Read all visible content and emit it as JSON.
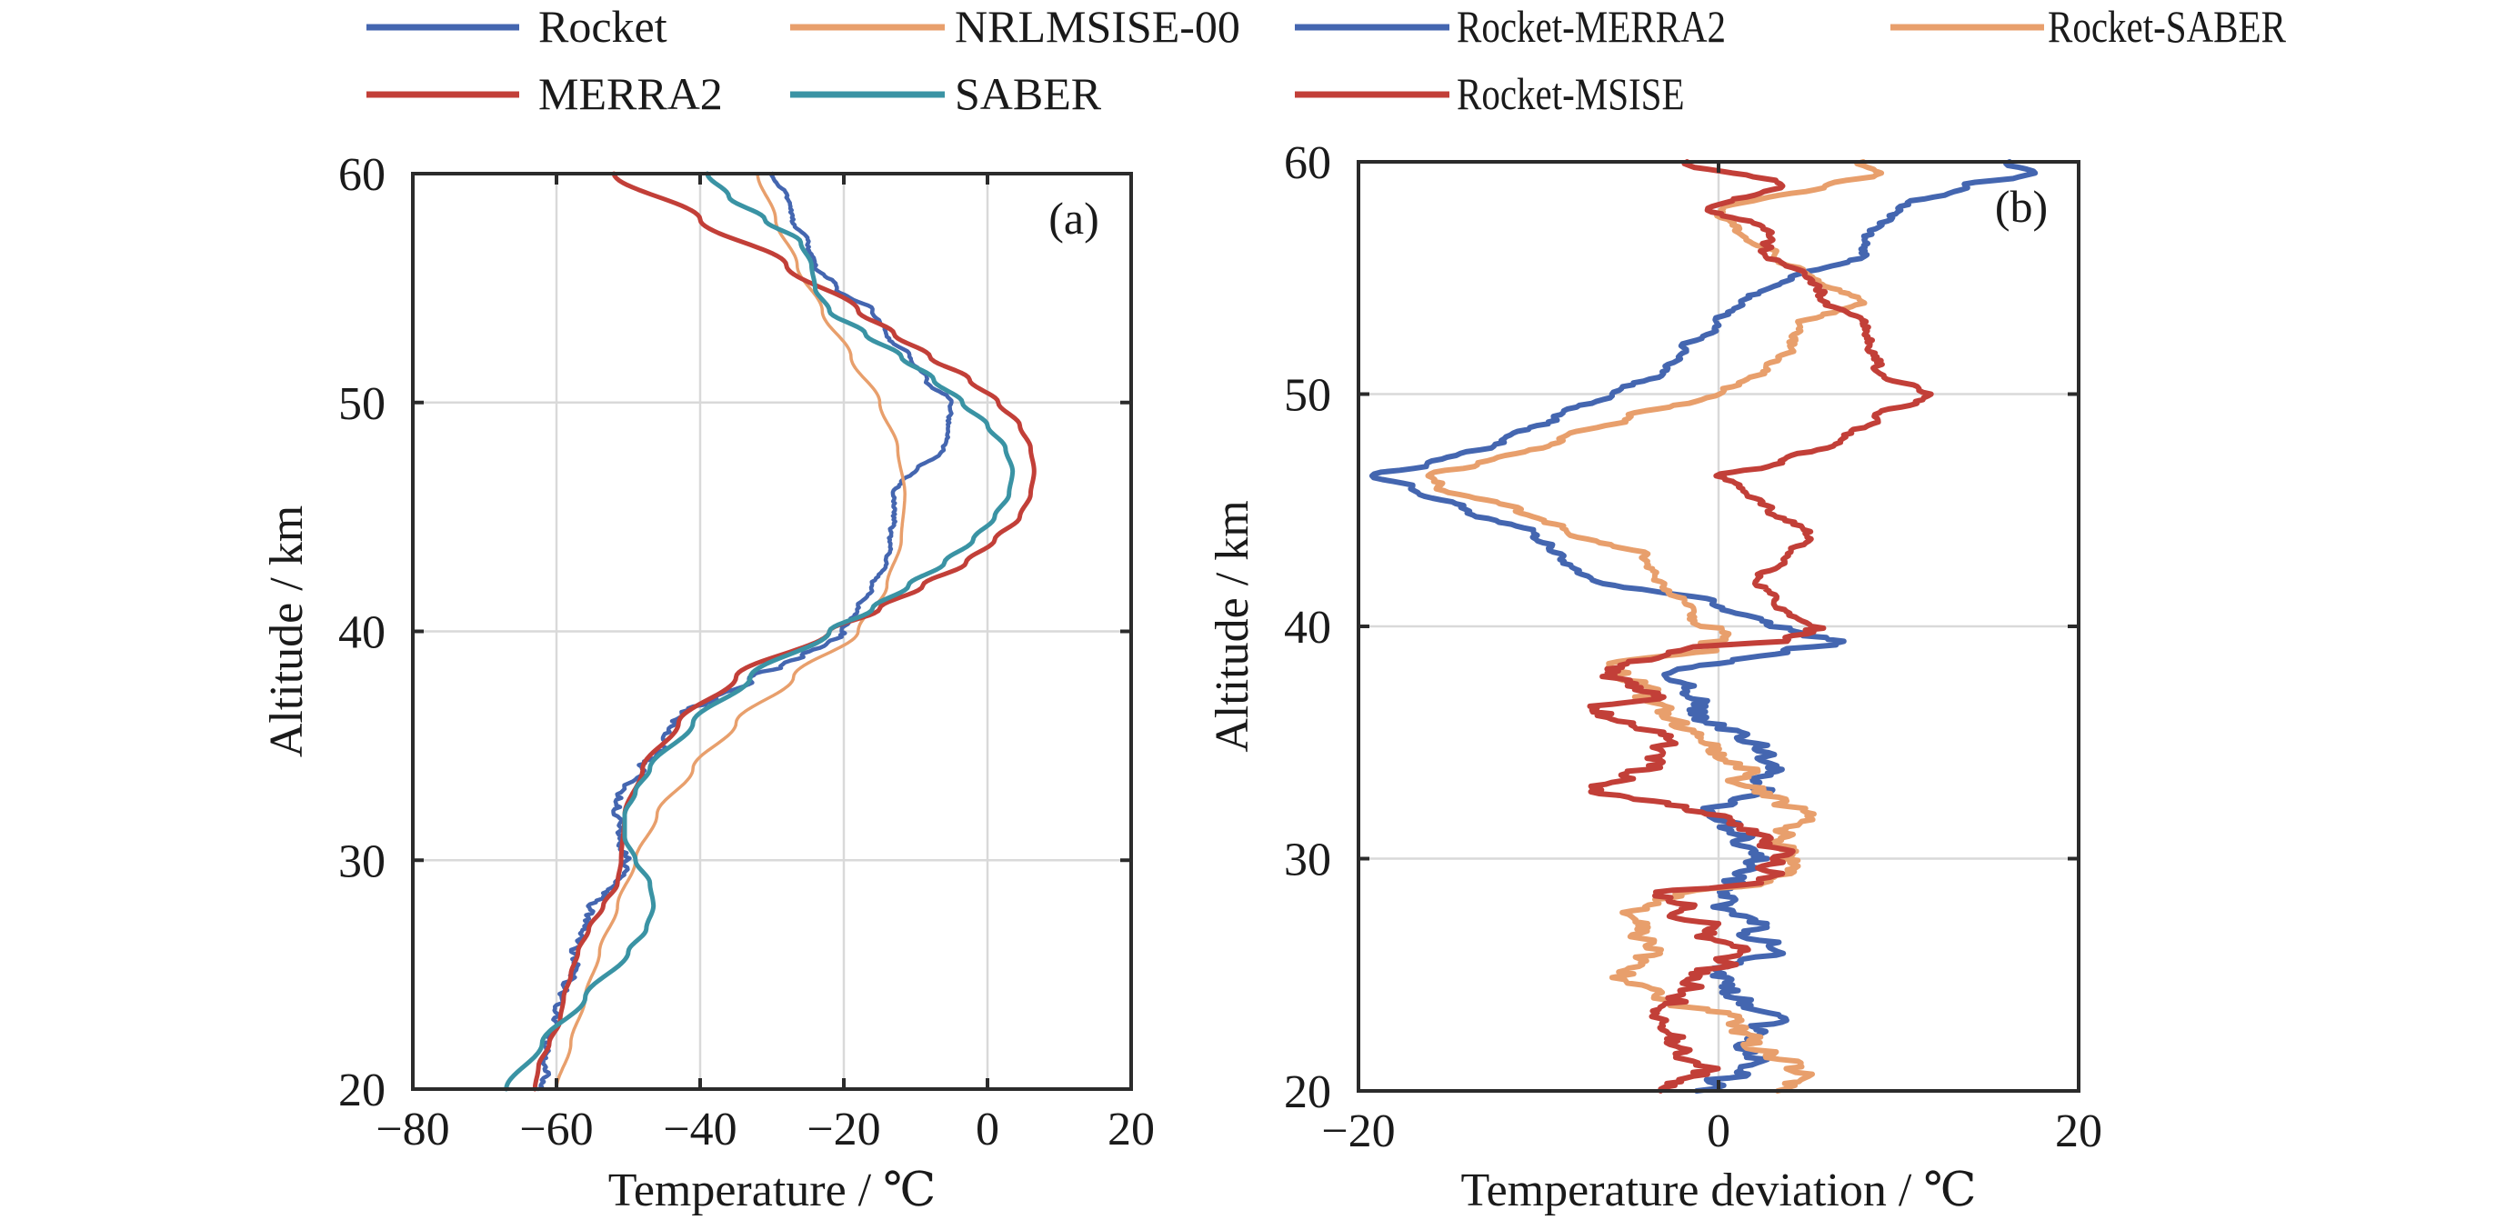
{
  "legend": {
    "items": [
      {
        "label": "Rocket",
        "color": "#4466b0"
      },
      {
        "label": "NRLMSISE-00",
        "color": "#e89f6c"
      },
      {
        "label": "Rocket-MERRA2",
        "color": "#4466b0"
      },
      {
        "label": "Rocket-SABER",
        "color": "#e89f6c"
      },
      {
        "label": "MERRA2",
        "color": "#c23f38"
      },
      {
        "label": "SABER",
        "color": "#3a93a4"
      },
      {
        "label": "Rocket-MSISE",
        "color": "#c23f38"
      }
    ]
  },
  "chart_data": [
    {
      "type": "line",
      "panel_label": "(a)",
      "xlabel": "Temperature / ℃",
      "ylabel": "Altitude / km",
      "xlim": [
        -80,
        20
      ],
      "ylim": [
        20,
        60
      ],
      "xticks": [
        -80,
        -60,
        -40,
        -20,
        0,
        20
      ],
      "xtick_labels": [
        "−80",
        "−60",
        "−40",
        "−20",
        "0",
        "20"
      ],
      "yticks": [
        20,
        30,
        40,
        50,
        60
      ],
      "ytick_labels": [
        "20",
        "30",
        "40",
        "50",
        "60"
      ],
      "grid": true,
      "series": [
        {
          "name": "Rocket",
          "color": "#4466b0",
          "noisy": true,
          "altitude": [
            20,
            21,
            22,
            23,
            24,
            25,
            26,
            27,
            28,
            28.5,
            29,
            29.5,
            30,
            31,
            32,
            33,
            34,
            35,
            36,
            36.5,
            37,
            38,
            38.5,
            39,
            39.5,
            40,
            41,
            42,
            43,
            44,
            45,
            46,
            46.5,
            47,
            48,
            49,
            50,
            51,
            52,
            53,
            54,
            55,
            56,
            57,
            58,
            59,
            60
          ],
          "values": [
            -62,
            -61.5,
            -61,
            -60,
            -59,
            -58,
            -57.5,
            -56,
            -55,
            -53.5,
            -52,
            -50.5,
            -50.5,
            -51,
            -51.5,
            -51,
            -48.5,
            -45,
            -44,
            -42,
            -38,
            -33,
            -29,
            -26,
            -22,
            -20,
            -18,
            -16,
            -14,
            -13.5,
            -13,
            -13,
            -12,
            -10,
            -6,
            -5.5,
            -5,
            -8.5,
            -11,
            -14,
            -16,
            -21,
            -24,
            -25,
            -27,
            -28,
            -30
          ]
        },
        {
          "name": "NRLMSISE-00",
          "color": "#e89f6c",
          "noisy": false,
          "altitude": [
            20,
            22,
            24,
            26,
            28,
            30,
            32,
            34,
            36,
            38,
            40,
            42,
            44,
            46,
            48,
            50,
            52,
            54,
            56,
            58,
            60
          ],
          "values": [
            -60,
            -58,
            -56,
            -54,
            -51.5,
            -49,
            -46,
            -41,
            -35,
            -27,
            -18,
            -14,
            -12,
            -11.5,
            -12.5,
            -15,
            -19,
            -23,
            -26.5,
            -29.5,
            -32
          ]
        },
        {
          "name": "MERRA2",
          "color": "#c23f38",
          "noisy": false,
          "altitude": [
            20,
            21,
            22,
            23,
            24,
            25,
            26,
            27,
            28,
            29,
            30,
            32,
            34,
            36,
            38,
            40,
            41,
            42,
            43,
            44,
            45,
            46,
            47,
            48,
            49,
            50,
            51,
            52,
            53,
            54,
            56,
            58,
            60
          ],
          "values": [
            -63,
            -62.5,
            -61,
            -59.5,
            -59,
            -58,
            -57,
            -55.5,
            -53.5,
            -51.5,
            -51,
            -50.5,
            -48,
            -43,
            -35,
            -22,
            -15,
            -9,
            -3,
            1,
            4.5,
            6,
            6.5,
            6,
            4.5,
            1.5,
            -2.5,
            -8,
            -13,
            -18,
            -28,
            -40,
            -52
          ]
        },
        {
          "name": "SABER",
          "color": "#3a93a4",
          "noisy": false,
          "altitude": [
            20,
            22,
            24,
            26,
            27,
            28,
            29,
            30,
            31,
            32,
            33,
            34,
            36,
            38,
            40,
            41,
            42,
            43,
            44,
            45,
            46,
            47,
            48,
            49,
            50,
            51,
            52,
            53,
            54,
            55,
            56,
            57,
            58,
            59,
            60
          ],
          "values": [
            -67,
            -62,
            -56,
            -50,
            -47.5,
            -46.5,
            -47,
            -49,
            -50.5,
            -50.5,
            -49,
            -47,
            -41,
            -33,
            -22,
            -16,
            -11,
            -6,
            -2,
            1,
            3,
            3.5,
            2.5,
            0,
            -3.5,
            -7.5,
            -12,
            -17,
            -22,
            -24,
            -24.5,
            -26,
            -31,
            -36,
            -39
          ]
        }
      ]
    },
    {
      "type": "line",
      "panel_label": "(b)",
      "xlabel": "Temperature deviation / ℃",
      "ylabel": "Altitude / km",
      "xlim": [
        -20,
        20
      ],
      "ylim": [
        20,
        60
      ],
      "xticks": [
        -20,
        0,
        20
      ],
      "xtick_labels": [
        "−20",
        "0",
        "20"
      ],
      "yticks": [
        20,
        30,
        40,
        50,
        60
      ],
      "ytick_labels": [
        "20",
        "30",
        "40",
        "50",
        "60"
      ],
      "grid": true,
      "series": [
        {
          "name": "Rocket-MERRA2",
          "color": "#4466b0",
          "noisy": true,
          "altitude": [
            20,
            21,
            22,
            23,
            24,
            25,
            26,
            27,
            28,
            29,
            30,
            31,
            32,
            33,
            34,
            35,
            36,
            37,
            38,
            38.5,
            39,
            39.3,
            40,
            41,
            42,
            43,
            44,
            45,
            46,
            46.5,
            47,
            48,
            49,
            50,
            51,
            52,
            53,
            54,
            55,
            56,
            57,
            58,
            59,
            59.5,
            60
          ],
          "values": [
            -0.5,
            1.5,
            1.5,
            3,
            1,
            0,
            3,
            2,
            0,
            0.5,
            2.5,
            1,
            0,
            2,
            3,
            2,
            -1,
            -1.5,
            -2.5,
            0,
            4,
            6.5,
            3,
            0,
            -7,
            -9,
            -10,
            -14,
            -17,
            -19,
            -16,
            -12,
            -9,
            -6,
            -3,
            -2,
            0,
            1.5,
            4,
            8,
            8.5,
            10,
            14,
            17.5,
            16
          ]
        },
        {
          "name": "Rocket-SABER",
          "color": "#e89f6c",
          "noisy": true,
          "altitude": [
            20,
            21,
            22,
            23,
            24,
            25,
            26,
            27,
            28,
            28.5,
            29,
            30,
            31,
            32,
            33,
            34,
            35,
            36,
            37,
            38,
            38.5,
            39,
            39.5,
            40,
            41,
            42,
            43,
            44,
            45,
            46,
            46.5,
            47,
            48,
            49,
            50,
            51,
            52,
            53,
            54,
            55,
            56,
            57,
            58,
            59,
            59.5,
            60
          ],
          "values": [
            4,
            4.5,
            2,
            1,
            -3,
            -5.5,
            -3.5,
            -4.5,
            -4.5,
            -2,
            3,
            4,
            3.5,
            4.5,
            2,
            1,
            -0.5,
            -2,
            -4,
            -5.5,
            -5,
            -0.5,
            0,
            -1,
            -2,
            -3.5,
            -4,
            -8,
            -11,
            -15.5,
            -16,
            -13,
            -9,
            -5,
            0,
            2.5,
            4,
            4.5,
            8,
            5.5,
            3,
            1,
            0,
            6,
            9,
            8
          ]
        },
        {
          "name": "Rocket-MSISE",
          "color": "#c23f38",
          "noisy": true,
          "altitude": [
            20,
            21,
            22,
            23,
            24,
            25,
            26,
            27,
            28,
            28.5,
            29,
            30,
            31,
            32,
            33,
            34,
            35,
            36,
            36.5,
            37,
            38,
            39,
            39.5,
            40,
            41,
            42,
            43,
            44,
            45,
            46,
            46.5,
            47,
            48,
            49,
            50,
            51,
            52,
            53,
            54,
            55,
            56,
            57,
            58,
            59,
            60
          ],
          "values": [
            -2.5,
            -1,
            -2,
            -3,
            -2,
            -1,
            1,
            -1,
            -2,
            -3,
            3,
            3.5,
            2,
            -1,
            -7,
            -4,
            -3,
            -5,
            -7,
            -4,
            -6,
            -2,
            4,
            5.5,
            3,
            2,
            4,
            5,
            3,
            1,
            0,
            3.5,
            6.5,
            9,
            11.5,
            9,
            8.5,
            8,
            6,
            5,
            2.5,
            3,
            -0.5,
            3.5,
            -2
          ]
        }
      ]
    }
  ]
}
